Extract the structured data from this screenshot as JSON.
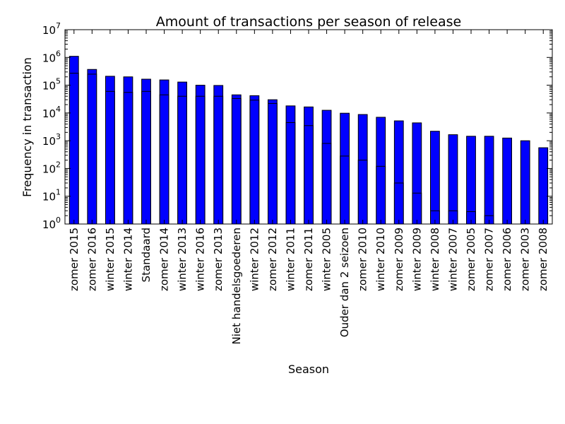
{
  "chart_data": {
    "type": "bar",
    "title": "Amount of transactions per season of release",
    "xlabel": "Season",
    "ylabel": "Frequency in transaction",
    "yscale": "log",
    "ylim": [
      1,
      10000000
    ],
    "y_ticks": [
      {
        "base": "10",
        "exp": "0"
      },
      {
        "base": "10",
        "exp": "1"
      },
      {
        "base": "10",
        "exp": "2"
      },
      {
        "base": "10",
        "exp": "3"
      },
      {
        "base": "10",
        "exp": "4"
      },
      {
        "base": "10",
        "exp": "5"
      },
      {
        "base": "10",
        "exp": "6"
      },
      {
        "base": "10",
        "exp": "7"
      }
    ],
    "grid": false,
    "bar_color": "#0000ff",
    "categories": [
      "zomer 2015",
      "zomer 2016",
      "winter 2015",
      "winter 2014",
      "Standaard",
      "zomer 2014",
      "winter 2013",
      "winter 2016",
      "zomer 2013",
      "Niet handelsgoederen",
      "winter 2012",
      "zomer 2012",
      "winter 2011",
      "zomer 2011",
      "winter 2005",
      "Ouder dan 2 seizoen",
      "zomer 2010",
      "winter 2010",
      "zomer 2009",
      "winter 2009",
      "winter 2008",
      "winter 2007",
      "zomer 2005",
      "zomer 2007",
      "zomer 2006",
      "zomer 2003",
      "zomer 2008"
    ],
    "series": [
      {
        "values": [
          1100000,
          370000,
          210000,
          200000,
          165000,
          155000,
          130000,
          100000,
          98000,
          45000,
          42000,
          30000,
          18000,
          16500,
          12500,
          9800,
          8800,
          7000,
          5200,
          4400,
          2200,
          1650,
          1450,
          1450,
          1250,
          1000,
          560
        ]
      },
      {
        "values": [
          270000,
          250000,
          60000,
          55000,
          60000,
          45000,
          40000,
          40000,
          40000,
          33000,
          29000,
          22000,
          4500,
          3500,
          800,
          280,
          200,
          120,
          30,
          13,
          3,
          3,
          2.8,
          2,
          null,
          null,
          null
        ]
      }
    ]
  }
}
